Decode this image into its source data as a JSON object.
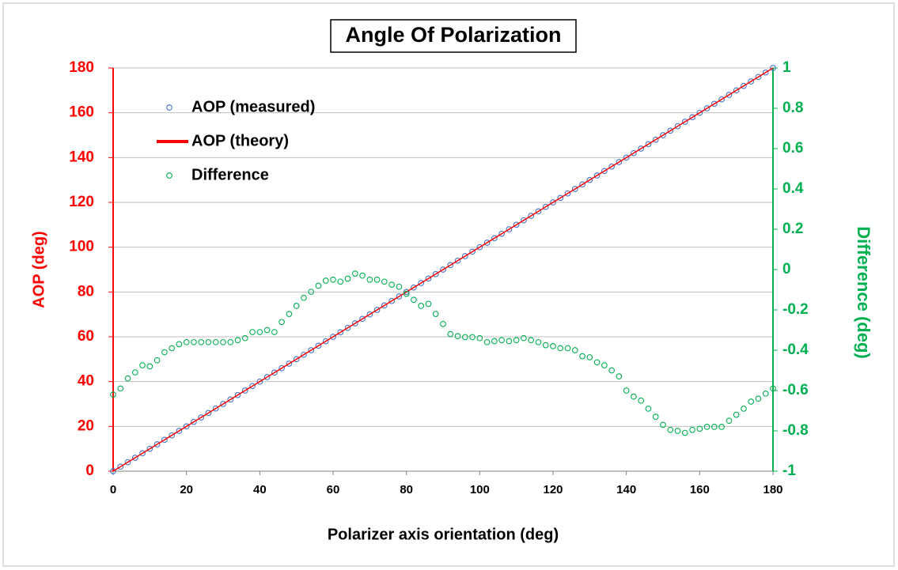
{
  "chart_data": {
    "type": "scatter",
    "title": "Angle Of Polarization",
    "x_label": "Polarizer axis orientation (deg)",
    "y_label": "AOP  (deg)",
    "y2_label": "Difference (deg)",
    "x": [
      0,
      2,
      4,
      6,
      8,
      10,
      12,
      14,
      16,
      18,
      20,
      22,
      24,
      26,
      28,
      30,
      32,
      34,
      36,
      38,
      40,
      42,
      44,
      46,
      48,
      50,
      52,
      54,
      56,
      58,
      60,
      62,
      64,
      66,
      68,
      70,
      72,
      74,
      76,
      78,
      80,
      82,
      84,
      86,
      88,
      90,
      92,
      94,
      96,
      98,
      100,
      102,
      104,
      106,
      108,
      110,
      112,
      114,
      116,
      118,
      120,
      122,
      124,
      126,
      128,
      130,
      132,
      134,
      136,
      138,
      140,
      142,
      144,
      146,
      148,
      150,
      152,
      154,
      156,
      158,
      160,
      162,
      164,
      166,
      168,
      170,
      172,
      174,
      176,
      178,
      180
    ],
    "series": [
      {
        "name": "AOP (measured)",
        "color": "#4472c4",
        "style": "marker",
        "values": [
          0,
          2,
          4,
          6,
          8,
          10,
          12,
          14,
          16,
          18,
          20,
          22,
          24,
          26,
          28,
          30,
          32,
          34,
          36,
          38,
          40,
          42,
          44,
          46,
          48,
          50,
          52,
          54,
          56,
          58,
          60,
          62,
          64,
          66,
          68,
          70,
          72,
          74,
          76,
          78,
          80,
          82,
          84,
          86,
          88,
          90,
          92,
          94,
          96,
          98,
          100,
          102,
          104,
          106,
          108,
          110,
          112,
          114,
          116,
          118,
          120,
          122,
          124,
          126,
          128,
          130,
          132,
          134,
          136,
          138,
          140,
          142,
          144,
          146,
          148,
          150,
          152,
          154,
          156,
          158,
          160,
          162,
          164,
          166,
          168,
          170,
          172,
          174,
          176,
          178,
          180
        ]
      },
      {
        "name": "AOP (theory)",
        "color": "#ff0000",
        "style": "line",
        "values": [
          0,
          2,
          4,
          6,
          8,
          10,
          12,
          14,
          16,
          18,
          20,
          22,
          24,
          26,
          28,
          30,
          32,
          34,
          36,
          38,
          40,
          42,
          44,
          46,
          48,
          50,
          52,
          54,
          56,
          58,
          60,
          62,
          64,
          66,
          68,
          70,
          72,
          74,
          76,
          78,
          80,
          82,
          84,
          86,
          88,
          90,
          92,
          94,
          96,
          98,
          100,
          102,
          104,
          106,
          108,
          110,
          112,
          114,
          116,
          118,
          120,
          122,
          124,
          126,
          128,
          130,
          132,
          134,
          136,
          138,
          140,
          142,
          144,
          146,
          148,
          150,
          152,
          154,
          156,
          158,
          160,
          162,
          164,
          166,
          168,
          170,
          172,
          174,
          176,
          178,
          180
        ]
      },
      {
        "name": "Difference",
        "color": "#00b050",
        "style": "marker",
        "axis": "y2",
        "values": [
          -0.62,
          -0.59,
          -0.54,
          -0.51,
          -0.475,
          -0.48,
          -0.45,
          -0.41,
          -0.39,
          -0.37,
          -0.36,
          -0.36,
          -0.36,
          -0.36,
          -0.36,
          -0.36,
          -0.36,
          -0.35,
          -0.34,
          -0.31,
          -0.31,
          -0.3,
          -0.31,
          -0.26,
          -0.22,
          -0.18,
          -0.14,
          -0.11,
          -0.08,
          -0.055,
          -0.05,
          -0.06,
          -0.045,
          -0.02,
          -0.03,
          -0.05,
          -0.05,
          -0.06,
          -0.075,
          -0.085,
          -0.12,
          -0.15,
          -0.18,
          -0.17,
          -0.22,
          -0.27,
          -0.32,
          -0.33,
          -0.335,
          -0.335,
          -0.34,
          -0.36,
          -0.355,
          -0.35,
          -0.355,
          -0.35,
          -0.34,
          -0.35,
          -0.36,
          -0.375,
          -0.38,
          -0.39,
          -0.39,
          -0.4,
          -0.43,
          -0.435,
          -0.46,
          -0.475,
          -0.5,
          -0.53,
          -0.6,
          -0.63,
          -0.65,
          -0.69,
          -0.73,
          -0.77,
          -0.795,
          -0.8,
          -0.81,
          -0.795,
          -0.79,
          -0.78,
          -0.78,
          -0.78,
          -0.75,
          -0.72,
          -0.69,
          -0.655,
          -0.64,
          -0.615,
          -0.59
        ]
      }
    ],
    "xlim": [
      0,
      180
    ],
    "xticks": [
      0,
      20,
      40,
      60,
      80,
      100,
      120,
      140,
      160,
      180
    ],
    "ylim": [
      0,
      180
    ],
    "yticks": [
      0,
      20,
      40,
      60,
      80,
      100,
      120,
      140,
      160,
      180
    ],
    "y2lim": [
      -1,
      1
    ],
    "y2ticks": [
      -1,
      -0.8,
      -0.6,
      -0.4,
      -0.2,
      0,
      0.2,
      0.4,
      0.6,
      0.8,
      1
    ],
    "y_color": "#ff0000",
    "y2_color": "#00b050",
    "grid": true,
    "legend": "upper left"
  }
}
